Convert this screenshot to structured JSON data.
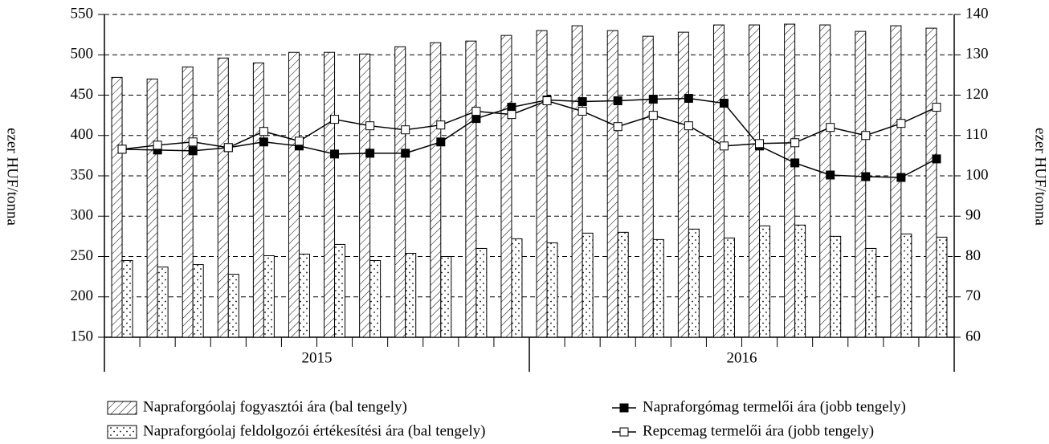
{
  "chart_data": {
    "type": "bar-line",
    "y_label": "ezer HUF/tonna",
    "y2_label": "ezer HUF/tonna",
    "categories": [
      null,
      null,
      null,
      null,
      null,
      null,
      null,
      null,
      null,
      null,
      null,
      null,
      null,
      null,
      null,
      null,
      null,
      null,
      null,
      null,
      null,
      null,
      null,
      null
    ],
    "groups": [
      {
        "label": "2015",
        "count": 12
      },
      {
        "label": "2016",
        "count": 12
      }
    ],
    "ylim": [
      150,
      550
    ],
    "yticks": [
      150,
      200,
      250,
      300,
      350,
      400,
      450,
      500,
      550
    ],
    "y2lim": [
      60,
      140
    ],
    "y2ticks": [
      60,
      70,
      80,
      90,
      100,
      110,
      120,
      130,
      140
    ],
    "grid": true,
    "series": [
      {
        "name": "Napraforgóolaj fogyasztói ára (bal tengely)",
        "kind": "bar",
        "pattern": "hatch",
        "color": "#000000",
        "values": [
          472,
          470,
          485,
          496,
          490,
          503,
          503,
          501,
          510,
          515,
          517,
          524,
          530,
          536,
          530,
          523,
          528,
          537,
          537,
          538,
          537,
          529,
          536,
          533
        ]
      },
      {
        "name": "Napraforgóolaj feldolgozói értékesítési ára (bal tengely)",
        "kind": "bar",
        "pattern": "dots",
        "color": "#000000",
        "values": [
          245,
          237,
          240,
          228,
          251,
          253,
          265,
          245,
          254,
          250,
          260,
          272,
          267,
          279,
          280,
          271,
          284,
          273,
          288,
          289,
          275,
          260,
          278,
          274
        ]
      },
      {
        "name": "Napraforgómag termelői ára (jobb tengely)",
        "kind": "line",
        "axis": "y2",
        "marker": "filled",
        "color": "#000000",
        "values": [
          106.6,
          106.4,
          106.2,
          107,
          108.4,
          107.4,
          105.4,
          105.6,
          105.6,
          108.4,
          114.2,
          117,
          118.8,
          118.4,
          118.6,
          119,
          119.2,
          118,
          107.4,
          103.2,
          100.2,
          99.8,
          99.6,
          104.2
        ]
      },
      {
        "name": "Repcemag termelői ára (jobb tengely)",
        "kind": "line",
        "axis": "y2",
        "marker": "open",
        "color": "#000000",
        "values": [
          106.6,
          107.6,
          108.4,
          107,
          111,
          108.6,
          114,
          112.4,
          111.4,
          112.6,
          116,
          115.2,
          118.6,
          116,
          112.2,
          115,
          112.4,
          107.4,
          108,
          108.2,
          112,
          110,
          113,
          117
        ]
      }
    ]
  }
}
